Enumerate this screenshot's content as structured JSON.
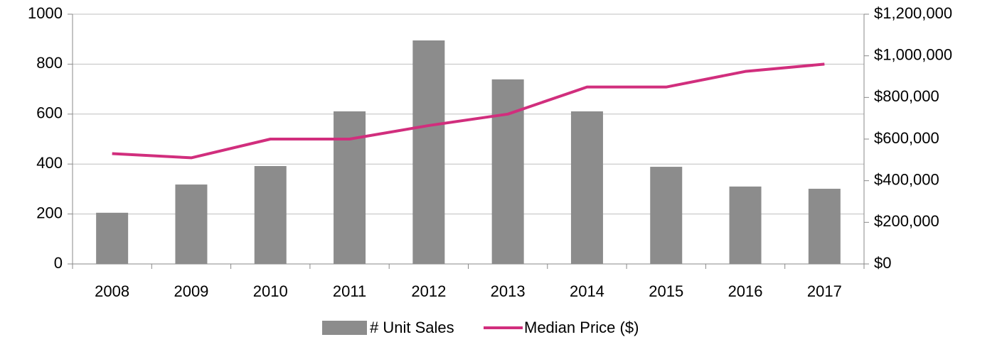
{
  "chart_data": {
    "type": "bar_line",
    "categories": [
      "2008",
      "2009",
      "2010",
      "2011",
      "2012",
      "2013",
      "2014",
      "2015",
      "2016",
      "2017"
    ],
    "series": [
      {
        "name": "# Unit Sales",
        "type": "bar",
        "color": "#8c8c8c",
        "values": [
          205,
          318,
          392,
          611,
          895,
          739,
          611,
          389,
          310,
          301
        ]
      },
      {
        "name": "Median Price ($)",
        "type": "line",
        "axis": "y2",
        "color": "#d12e7d",
        "values": [
          530000,
          510000,
          600000,
          600000,
          665000,
          720000,
          850000,
          850000,
          925000,
          960000
        ]
      }
    ],
    "ylim": [
      0,
      1000
    ],
    "yticks": [
      0,
      200,
      400,
      600,
      800,
      1000
    ],
    "y2lim": [
      0,
      1200000
    ],
    "y2ticks": [
      {
        "value": 0,
        "label": "$0"
      },
      {
        "value": 200000,
        "label": "$200,000"
      },
      {
        "value": 400000,
        "label": "$400,000"
      },
      {
        "value": 600000,
        "label": "$600,000"
      },
      {
        "value": 800000,
        "label": "$800,000"
      },
      {
        "value": 1000000,
        "label": "$1,000,000"
      },
      {
        "value": 1200000,
        "label": "$1,200,000"
      }
    ],
    "grid": true,
    "legend": "bottom"
  }
}
